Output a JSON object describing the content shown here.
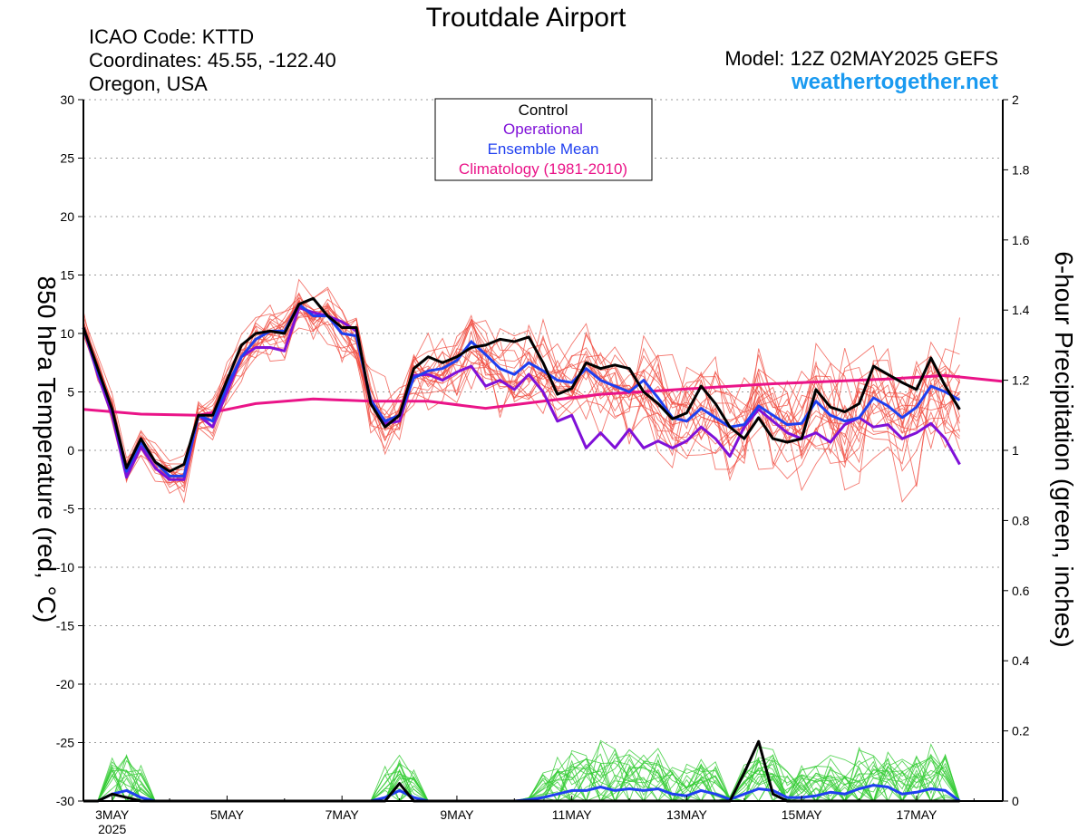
{
  "header": {
    "title": "Troutdale Airport",
    "icao": "ICAO Code: KTTD",
    "coords": "Coordinates: 45.55, -122.40",
    "region": "Oregon, USA",
    "model": "Model: 12Z 02MAY2025 GEFS",
    "site": "weathertogether.net"
  },
  "colors": {
    "control": "#000000",
    "operational": "#7f10d8",
    "mean": "#1f3ff0",
    "climatology": "#ea1488",
    "members_temp": "#f04a3e",
    "members_precip": "#33cc33",
    "site": "#1a9af0",
    "grid": "#9a9a9a"
  },
  "chart_data": {
    "type": "line",
    "ylabel_left": "850 hPa Temperature (red, °C)",
    "ylabel_right": "6-hour Precipitation (green, inches)",
    "ylim_left": [
      -30,
      30
    ],
    "ylim_right": [
      0,
      2
    ],
    "yticks_left": [
      "30",
      "25",
      "20",
      "15",
      "10",
      "5",
      "0",
      "-5",
      "-10",
      "-15",
      "-20",
      "-25",
      "-30"
    ],
    "yticks_right": [
      "2",
      "1.8",
      "1.6",
      "1.4",
      "1.2",
      "1",
      "0.8",
      "0.6",
      "0.4",
      "0.2",
      "0"
    ],
    "xlim_days": [
      2.5,
      18.5
    ],
    "xticks": [
      {
        "day": 3,
        "label": "3MAY",
        "sub": "2025"
      },
      {
        "day": 5,
        "label": "5MAY",
        "sub": ""
      },
      {
        "day": 7,
        "label": "7MAY",
        "sub": ""
      },
      {
        "day": 9,
        "label": "9MAY",
        "sub": ""
      },
      {
        "day": 11,
        "label": "11MAY",
        "sub": ""
      },
      {
        "day": 13,
        "label": "13MAY",
        "sub": ""
      },
      {
        "day": 15,
        "label": "15MAY",
        "sub": ""
      },
      {
        "day": 17,
        "label": "17MAY",
        "sub": ""
      }
    ],
    "grid": true,
    "legend": {
      "placement": "top-center",
      "entries": [
        "Control",
        "Operational",
        "Ensemble Mean",
        "Climatology (1981-2010)"
      ]
    },
    "x_start_day": 2.5,
    "x_step_days": 0.25,
    "temperature": {
      "control": [
        10.5,
        7.0,
        3.5,
        -1.5,
        1.0,
        -1.0,
        -1.8,
        -1.2,
        3.0,
        3.0,
        6.0,
        9.0,
        10.0,
        10.2,
        10.0,
        12.5,
        13.0,
        11.5,
        10.5,
        10.5,
        4.0,
        2.0,
        3.0,
        7.0,
        8.0,
        7.5,
        8.0,
        8.8,
        9.0,
        9.5,
        9.3,
        9.7,
        7.5,
        4.8,
        5.3,
        7.5,
        7.0,
        7.3,
        7.0,
        5.0,
        4.0,
        2.7,
        3.2,
        5.5,
        4.0,
        2.0,
        1.0,
        2.8,
        1.0,
        0.7,
        1.0,
        5.2,
        3.7,
        3.3,
        4.0,
        7.2,
        6.5,
        5.8,
        5.2,
        7.9,
        5.5,
        3.5
      ],
      "operational": [
        10.5,
        6.5,
        3.0,
        -2.3,
        0.3,
        -1.5,
        -2.5,
        -2.5,
        3.0,
        2.0,
        5.0,
        8.0,
        8.8,
        8.8,
        8.5,
        12.2,
        11.8,
        11.5,
        11.0,
        10.2,
        4.0,
        2.3,
        2.5,
        6.4,
        6.5,
        6.0,
        6.7,
        7.2,
        5.5,
        6.0,
        5.2,
        6.5,
        5.0,
        2.5,
        3.0,
        0.2,
        1.5,
        0.2,
        1.8,
        0.2,
        0.8,
        0.2,
        0.8,
        2.0,
        1.0,
        -0.5,
        2.0,
        3.5,
        2.5,
        1.5,
        1.0,
        1.5,
        0.7,
        2.2,
        2.8,
        2.0,
        2.2,
        1.0,
        1.5,
        2.3,
        1.0,
        -1.2
      ],
      "mean": [
        10.5,
        6.8,
        3.5,
        -1.8,
        0.7,
        -1.0,
        -2.2,
        -2.2,
        3.0,
        2.5,
        5.5,
        8.0,
        9.5,
        10.2,
        10.2,
        12.5,
        11.5,
        11.5,
        10.0,
        9.8,
        4.3,
        2.5,
        3.0,
        6.2,
        6.8,
        7.0,
        7.7,
        9.3,
        8.2,
        7.0,
        6.5,
        7.5,
        6.8,
        6.0,
        5.8,
        7.0,
        6.0,
        5.5,
        5.0,
        6.0,
        4.5,
        2.8,
        2.5,
        3.6,
        2.8,
        2.0,
        2.2,
        3.8,
        3.0,
        2.2,
        2.3,
        4.2,
        3.0,
        2.5,
        2.8,
        4.5,
        3.8,
        2.8,
        3.7,
        5.5,
        5.0,
        4.3
      ],
      "climatology_days": [
        2.5,
        3.5,
        4.5,
        5.5,
        6.5,
        7.5,
        8.5,
        9.5,
        10.5,
        11.5,
        12.5,
        13.5,
        14.5,
        15.5,
        16.5,
        17.5,
        18.5
      ],
      "climatology": [
        3.5,
        3.1,
        3.0,
        4.0,
        4.4,
        4.2,
        4.2,
        3.6,
        4.2,
        4.8,
        5.1,
        5.4,
        5.7,
        5.9,
        6.1,
        6.4,
        5.9
      ]
    },
    "precipitation": {
      "control": [
        0,
        0,
        0.02,
        0.01,
        0,
        0,
        0,
        0,
        0,
        0,
        0,
        0,
        0,
        0,
        0,
        0,
        0,
        0,
        0,
        0,
        0,
        0,
        0.05,
        0,
        0,
        0,
        0,
        0,
        0,
        0,
        0,
        0,
        0,
        0,
        0,
        0,
        0,
        0,
        0,
        0,
        0,
        0,
        0,
        0,
        0,
        0,
        0.08,
        0.17,
        0.02,
        0,
        0,
        0,
        0,
        0,
        0,
        0,
        0,
        0,
        0,
        0,
        0,
        0
      ],
      "mean": [
        0,
        0,
        0.02,
        0.03,
        0.01,
        0,
        0,
        0,
        0,
        0,
        0,
        0,
        0,
        0,
        0,
        0,
        0,
        0,
        0,
        0,
        0,
        0.01,
        0.03,
        0.01,
        0,
        0,
        0,
        0,
        0,
        0,
        0,
        0.004,
        0.01,
        0.02,
        0.03,
        0.03,
        0.04,
        0.03,
        0.035,
        0.03,
        0.035,
        0.02,
        0.015,
        0.03,
        0.02,
        0.005,
        0.02,
        0.035,
        0.03,
        0.01,
        0.01,
        0.015,
        0.025,
        0.02,
        0.035,
        0.045,
        0.04,
        0.02,
        0.025,
        0.035,
        0.03,
        0
      ]
    }
  }
}
